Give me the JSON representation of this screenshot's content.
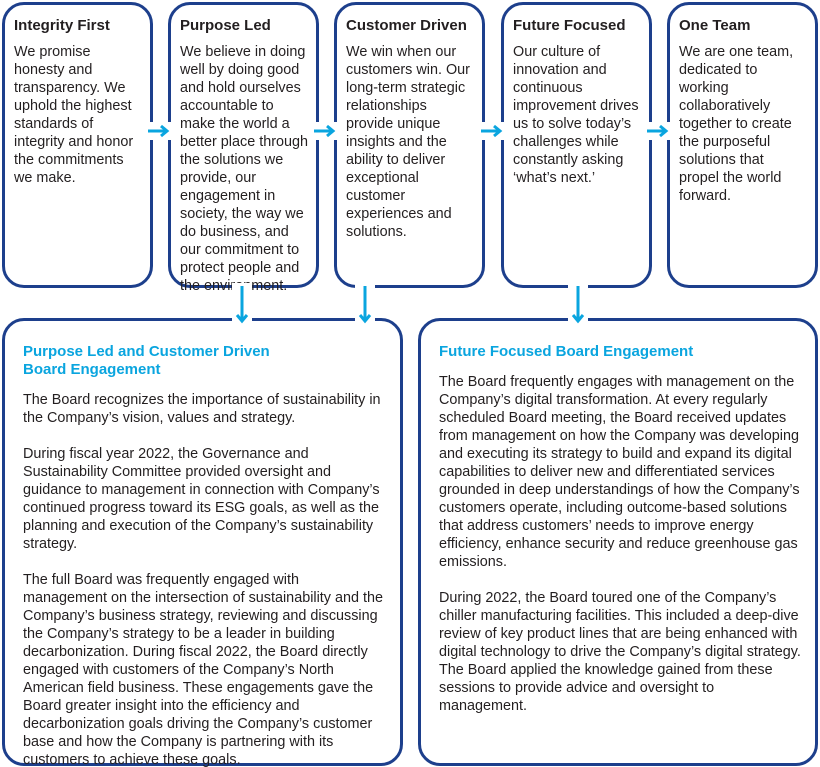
{
  "colors": {
    "border": "#1d3f8c",
    "accent": "#0aa5df",
    "text": "#231f20"
  },
  "values": [
    {
      "title": "Integrity First",
      "text": "We promise honesty and transparency. We uphold the highest standards of integrity and honor the commitments we make."
    },
    {
      "title": "Purpose Led",
      "text": "We believe in doing well by doing good and hold ourselves accountable to make the world a better place through the solutions we provide, our engagement in society, the way we do business, and our commitment to protect people and the environment."
    },
    {
      "title": "Customer Driven",
      "text": "We win when our customers win. Our long-term strategic relationships provide unique insights and the ability to deliver exceptional customer experiences and solutions."
    },
    {
      "title": "Future Focused",
      "text": "Our culture of innovation and continuous improvement drives us to solve today’s challenges while constantly asking ‘what’s next.’"
    },
    {
      "title": "One Team",
      "text": "We are one team, dedicated to working collaboratively together to create the purposeful solutions that propel the world forward."
    }
  ],
  "engagement": [
    {
      "title": "Purpose Led and Customer Driven Board Engagement",
      "paragraphs": [
        "The Board recognizes the importance of sustainability in the Company’s vision, values and strategy.",
        "During fiscal year 2022, the Governance and Sustainability Committee provided oversight and guidance to management in connection with Company’s continued progress toward its ESG goals, as well as the planning and execution of the Company’s sustainability strategy.",
        "The full Board was frequently engaged with management on the intersection of sustainability and the Company’s business strategy, reviewing and discussing the Company’s strategy to be a leader in building decarbonization. During fiscal 2022, the Board directly engaged with customers of the Company’s North American field business. These engagements gave the Board greater insight into the efficiency and decarbonization goals driving the Company’s customer base and how the Company is partnering with its customers to achieve these goals."
      ]
    },
    {
      "title": "Future Focused Board Engagement",
      "paragraphs": [
        "The Board frequently engages with management on the Company’s digital transformation. At every regularly scheduled Board meeting, the Board received updates from management on how the Company was developing and executing its strategy to build and expand its digital capabilities to deliver new and differentiated services grounded in deep understandings of how the Company’s customers operate, including outcome-based solutions that address customers’ needs to improve energy efficiency, enhance security and reduce greenhouse gas emissions.",
        "During 2022, the Board toured one of the Company’s chiller manufacturing facilities. This included a deep-dive review of key product lines that are being enhanced with digital technology to drive the Company’s digital strategy. The Board applied the knowledge gained from these sessions to provide advice and oversight to management."
      ]
    }
  ]
}
